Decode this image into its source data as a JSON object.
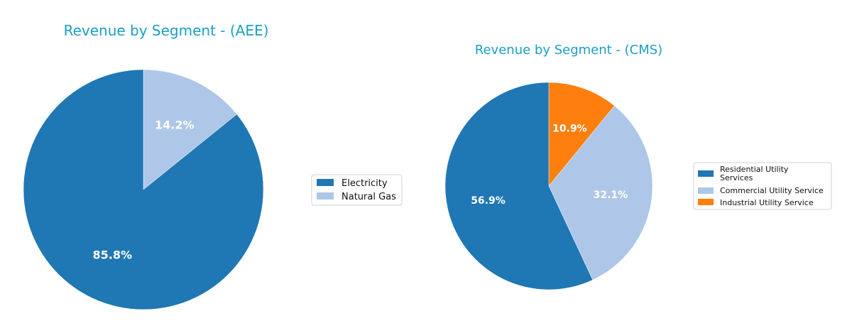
{
  "chart_data": [
    {
      "type": "pie",
      "title": "Revenue by Segment - (AEE)",
      "legend_position": "right",
      "slices": [
        {
          "name": "Electricity",
          "value": 85.8,
          "label": "85.8%",
          "color": "#1f77b4"
        },
        {
          "name": "Natural Gas",
          "value": 14.2,
          "label": "14.2%",
          "color": "#aec7e8"
        }
      ]
    },
    {
      "type": "pie",
      "title": "Revenue by Segment - (CMS)",
      "legend_position": "right",
      "slices": [
        {
          "name": "Residential Utility Services",
          "value": 56.9,
          "label": "56.9%",
          "color": "#1f77b4"
        },
        {
          "name": "Commercial Utility Service",
          "value": 32.1,
          "label": "32.1%",
          "color": "#aec7e8"
        },
        {
          "name": "Industrial Utility Service",
          "value": 10.9,
          "label": "10.9%",
          "color": "#ff7f0e"
        }
      ]
    }
  ]
}
